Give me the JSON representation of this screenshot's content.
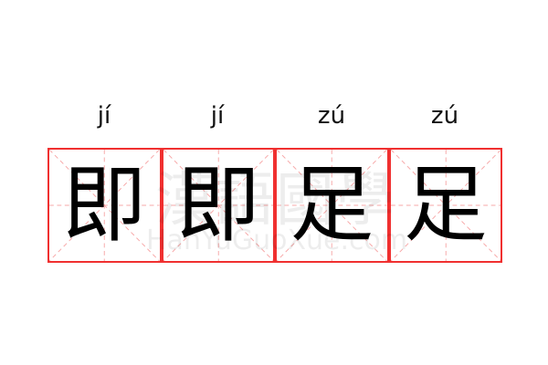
{
  "cells": [
    {
      "pinyin": "jí",
      "char": "即"
    },
    {
      "pinyin": "jí",
      "char": "即"
    },
    {
      "pinyin": "zú",
      "char": "足"
    },
    {
      "pinyin": "zú",
      "char": "足"
    }
  ],
  "watermark": {
    "cn": "漢語國學",
    "en": "HanYuGuoXue.com"
  },
  "colors": {
    "border": "#f03030",
    "guide": "#f7a8a8"
  }
}
